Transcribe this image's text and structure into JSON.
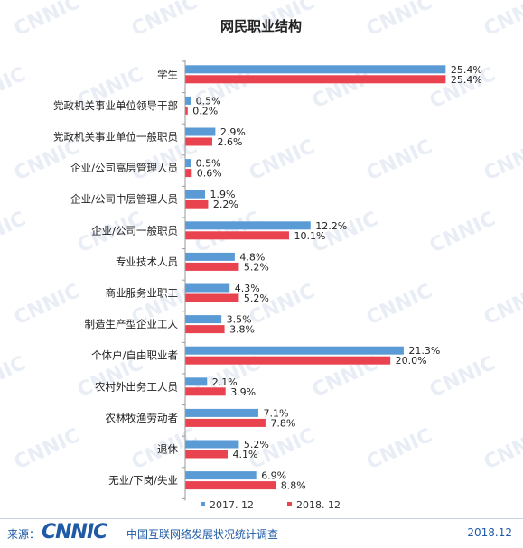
{
  "chart_data": {
    "type": "bar",
    "orientation": "horizontal",
    "title": "网民职业结构",
    "categories": [
      "学生",
      "党政机关事业单位领导干部",
      "党政机关事业单位一般职员",
      "企业/公司高层管理人员",
      "企业/公司中层管理人员",
      "企业/公司一般职员",
      "专业技术人员",
      "商业服务业职工",
      "制造生产型企业工人",
      "个体户/自由职业者",
      "农村外出务工人员",
      "农林牧渔劳动者",
      "退休",
      "无业/下岗/失业"
    ],
    "series": [
      {
        "name": "2017. 12",
        "color": "#5b9bd5",
        "values": [
          25.4,
          0.5,
          2.9,
          0.5,
          1.9,
          12.2,
          4.8,
          4.3,
          3.5,
          21.3,
          2.1,
          7.1,
          5.2,
          6.9
        ],
        "labels": [
          "25.4%",
          "0.5%",
          "2.9%",
          "0.5%",
          "1.9%",
          "12.2%",
          "4.8%",
          "4.3%",
          "3.5%",
          "21.3%",
          "2.1%",
          "7.1%",
          "5.2%",
          "6.9%"
        ]
      },
      {
        "name": "2018. 12",
        "color": "#e8434f",
        "values": [
          25.4,
          0.2,
          2.6,
          0.6,
          2.2,
          10.1,
          5.2,
          5.2,
          3.8,
          20.0,
          3.9,
          7.8,
          4.1,
          8.8
        ],
        "labels": [
          "25.4%",
          "0.2%",
          "2.6%",
          "0.6%",
          "2.2%",
          "10.1%",
          "5.2%",
          "5.2%",
          "3.8%",
          "20.0%",
          "3.9%",
          "7.8%",
          "4.1%",
          "8.8%"
        ]
      }
    ],
    "xlim": [
      0,
      30
    ],
    "grid": false,
    "legend": "bottom"
  },
  "watermark": "CNNIC",
  "footer": {
    "source_label": "来源：",
    "logo": "CNNIC",
    "org": "中国互联网络发展状况统计调查",
    "date": "2018.12"
  }
}
